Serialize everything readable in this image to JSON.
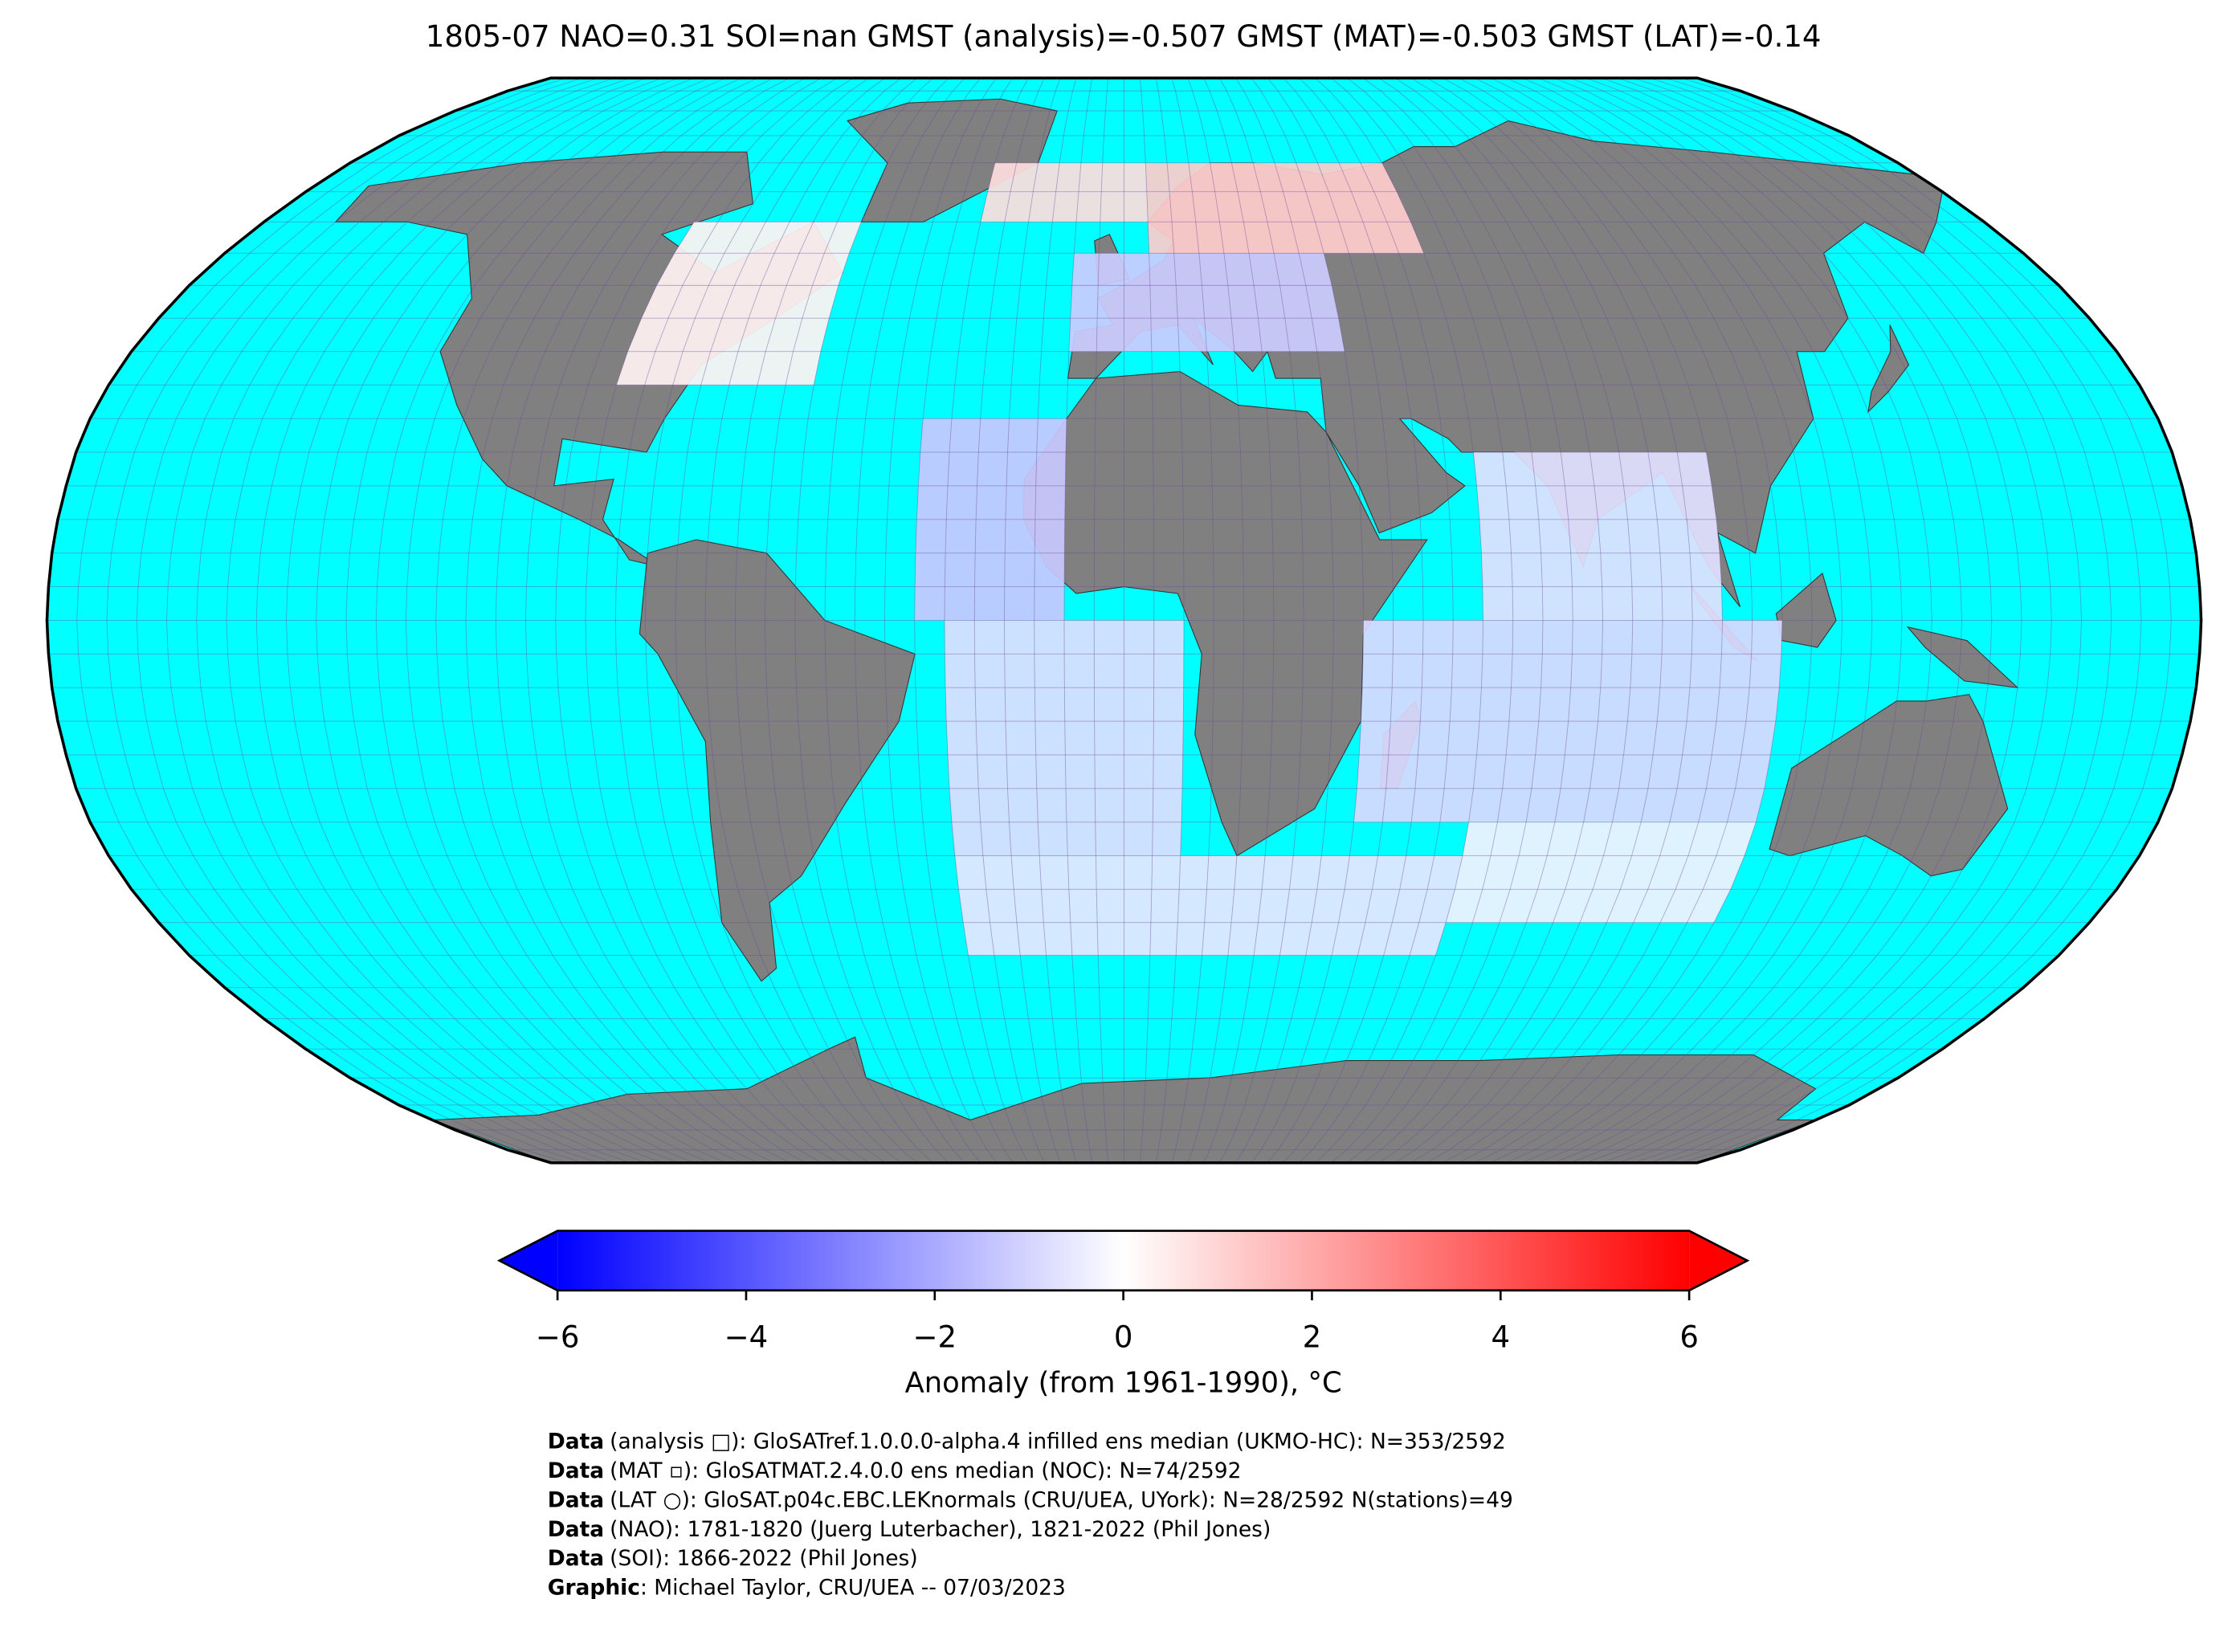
{
  "title": "1805-07 NAO=0.31 SOI=nan GMST (analysis)=-0.507 GMST (MAT)=-0.503 GMST (LAT)=-0.14",
  "map": {
    "projection": "Robinson",
    "grid_cells": [
      {
        "lon": [
          5,
          60
        ],
        "lat": [
          55,
          70
        ],
        "anomaly": 1.2
      },
      {
        "lon": [
          -30,
          5
        ],
        "lat": [
          60,
          70
        ],
        "anomaly": 0.8
      },
      {
        "lon": [
          -10,
          40
        ],
        "lat": [
          40,
          55
        ],
        "anomaly": -1.2
      },
      {
        "lon": [
          -90,
          -55
        ],
        "lat": [
          35,
          60
        ],
        "anomaly": 0.3
      },
      {
        "lon": [
          -35,
          -10
        ],
        "lat": [
          0,
          30
        ],
        "anomaly": -1.3
      },
      {
        "lon": [
          -30,
          10
        ],
        "lat": [
          -35,
          0
        ],
        "anomaly": -0.8
      },
      {
        "lon": [
          -30,
          60
        ],
        "lat": [
          -50,
          -35
        ],
        "anomaly": -0.6
      },
      {
        "lon": [
          40,
          110
        ],
        "lat": [
          -30,
          0
        ],
        "anomaly": -0.9
      },
      {
        "lon": [
          60,
          100
        ],
        "lat": [
          0,
          25
        ],
        "anomaly": -0.7
      },
      {
        "lon": [
          60,
          110
        ],
        "lat": [
          -45,
          -30
        ],
        "anomaly": -0.3
      }
    ]
  },
  "colorbar": {
    "lim": [
      -6,
      6
    ],
    "colors": [
      "#0000ff",
      "#ffffff",
      "#ff0000"
    ],
    "ticks": [
      {
        "value": -6,
        "label": "−6"
      },
      {
        "value": -4,
        "label": "−4"
      },
      {
        "value": -2,
        "label": "−2"
      },
      0,
      2,
      4,
      6
    ],
    "label": "Anomaly (from 1961-1990), °C"
  },
  "footer": [
    {
      "label": "Data",
      "text": "(analysis □): GloSATref.1.0.0.0-alpha.4 infilled ens median (UKMO-HC): N=353/2592"
    },
    {
      "label": "Data",
      "text": "(MAT ▫): GloSATMAT.2.4.0.0 ens median (NOC): N=74/2592"
    },
    {
      "label": "Data",
      "text": "(LAT ○): GloSAT.p04c.EBC.LEKnormals (CRU/UEA, UYork): N=28/2592 N(stations)=49"
    },
    {
      "label": "Data",
      "text": "(NAO): 1781-1820 (Juerg Luterbacher), 1821-2022 (Phil Jones)"
    },
    {
      "label": "Data",
      "text": "(SOI): 1866-2022 (Phil Jones)"
    },
    {
      "label": "Graphic",
      "text": ": Michael Taylor, CRU/UEA -- 07/03/2023"
    }
  ]
}
